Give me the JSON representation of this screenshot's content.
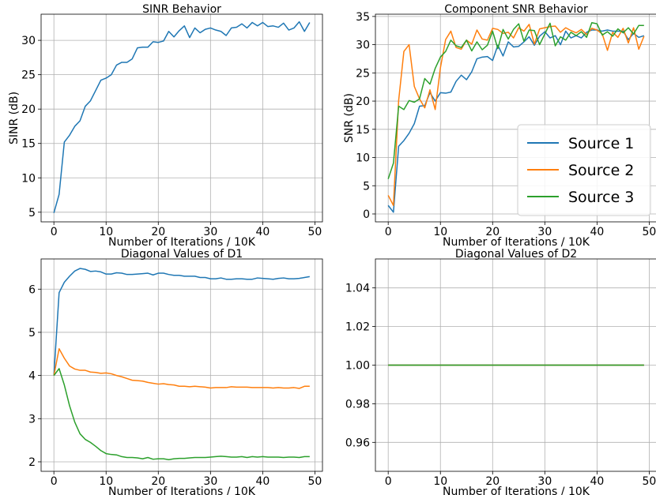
{
  "chart_data": [
    {
      "type": "line",
      "title": "SINR Behavior",
      "xlabel": "Number of Iterations / 10K",
      "ylabel": "SINR (dB)",
      "xlim": [
        -2.45,
        51.45
      ],
      "ylim": [
        3.6,
        33.8
      ],
      "xticks": [
        0,
        10,
        20,
        30,
        40,
        50
      ],
      "yticks": [
        5,
        10,
        15,
        20,
        25,
        30
      ],
      "grid": true,
      "x": [
        0,
        1,
        2,
        3,
        4,
        5,
        6,
        7,
        8,
        9,
        10,
        11,
        12,
        13,
        14,
        15,
        16,
        17,
        18,
        19,
        20,
        21,
        22,
        23,
        24,
        25,
        26,
        27,
        28,
        29,
        30,
        31,
        32,
        33,
        34,
        35,
        36,
        37,
        38,
        39,
        40,
        41,
        42,
        43,
        44,
        45,
        46,
        47,
        48,
        49
      ],
      "series": [
        {
          "color": "#1f77b4",
          "values": [
            4.9,
            7.6,
            15.2,
            16.2,
            17.5,
            18.3,
            20.4,
            21.2,
            22.7,
            24.2,
            24.5,
            25.0,
            26.4,
            26.8,
            26.8,
            27.3,
            28.9,
            29.0,
            29.0,
            29.8,
            29.7,
            29.9,
            31.3,
            30.5,
            31.4,
            32.1,
            30.4,
            31.8,
            31.1,
            31.6,
            31.8,
            31.5,
            31.3,
            30.7,
            31.8,
            31.9,
            32.4,
            31.8,
            32.6,
            32.1,
            32.6,
            32.0,
            32.1,
            31.9,
            32.5,
            31.5,
            31.8,
            32.7,
            31.3,
            32.6
          ]
        }
      ]
    },
    {
      "type": "line",
      "title": "Component SNR Behavior",
      "xlabel": "Number of Iterations / 10K",
      "ylabel": "SNR (dB)",
      "xlim": [
        -2.45,
        51.45
      ],
      "ylim": [
        -1.4,
        35.4
      ],
      "xticks": [
        0,
        10,
        20,
        30,
        40,
        50
      ],
      "yticks": [
        0,
        5,
        10,
        15,
        20,
        25,
        30,
        35
      ],
      "grid": true,
      "legend_position": "lower-right",
      "x": [
        0,
        1,
        2,
        3,
        4,
        5,
        6,
        7,
        8,
        9,
        10,
        11,
        12,
        13,
        14,
        15,
        16,
        17,
        18,
        19,
        20,
        21,
        22,
        23,
        24,
        25,
        26,
        27,
        28,
        29,
        30,
        31,
        32,
        33,
        34,
        35,
        36,
        37,
        38,
        39,
        40,
        41,
        42,
        43,
        44,
        45,
        46,
        47,
        48,
        49
      ],
      "series": [
        {
          "name": "Source 1",
          "color": "#1f77b4",
          "values": [
            1.5,
            0.3,
            12.0,
            13.0,
            14.3,
            16.0,
            19.1,
            19.2,
            21.5,
            20.0,
            21.5,
            21.4,
            21.6,
            23.5,
            24.6,
            23.8,
            25.2,
            27.5,
            27.8,
            27.9,
            27.2,
            29.9,
            28.0,
            30.5,
            29.6,
            29.7,
            30.5,
            31.4,
            29.9,
            31.5,
            32.3,
            31.2,
            31.6,
            30.0,
            32.4,
            31.2,
            31.6,
            31.2,
            32.2,
            32.6,
            32.6,
            32.4,
            32.6,
            32.4,
            32.4,
            32.4,
            30.9,
            32.0,
            31.3,
            31.6
          ]
        },
        {
          "name": "Source 2",
          "color": "#ff7f0e",
          "values": [
            3.3,
            1.5,
            20.1,
            28.8,
            30.0,
            22.6,
            20.4,
            18.8,
            22.0,
            18.5,
            25.9,
            30.9,
            32.4,
            29.5,
            29.2,
            30.8,
            30.1,
            32.6,
            31.0,
            30.8,
            32.9,
            32.7,
            32.0,
            32.2,
            31.2,
            33.0,
            32.4,
            33.6,
            30.1,
            32.8,
            33.0,
            33.2,
            33.3,
            32.2,
            33.0,
            32.5,
            32.1,
            32.7,
            31.8,
            32.9,
            32.6,
            31.9,
            29.0,
            32.2,
            31.3,
            32.9,
            30.3,
            33.0,
            29.2,
            31.5
          ]
        },
        {
          "name": "Source 3",
          "color": "#2ca02c",
          "values": [
            6.2,
            9.0,
            19.1,
            18.5,
            20.1,
            19.8,
            20.4,
            24.0,
            23.0,
            25.8,
            27.8,
            28.8,
            30.8,
            29.8,
            29.5,
            30.8,
            28.9,
            30.5,
            29.1,
            29.9,
            32.4,
            29.3,
            32.7,
            31.0,
            32.7,
            33.7,
            30.6,
            32.6,
            32.5,
            30.0,
            31.9,
            33.8,
            29.8,
            31.4,
            30.8,
            32.2,
            31.6,
            32.3,
            31.3,
            33.9,
            33.7,
            31.7,
            32.3,
            31.5,
            32.8,
            32.1,
            33.0,
            31.9,
            33.4,
            33.4
          ]
        }
      ]
    },
    {
      "type": "line",
      "title": "Diagonal Values of D1",
      "xlabel": "Number of Iterations / 10K",
      "ylabel": "",
      "xlim": [
        -2.45,
        51.45
      ],
      "ylim": [
        1.78,
        6.7
      ],
      "xticks": [
        0,
        10,
        20,
        30,
        40,
        50
      ],
      "yticks": [
        2,
        3,
        4,
        5,
        6
      ],
      "grid": true,
      "x": [
        0,
        1,
        2,
        3,
        4,
        5,
        6,
        7,
        8,
        9,
        10,
        11,
        12,
        13,
        14,
        15,
        16,
        17,
        18,
        19,
        20,
        21,
        22,
        23,
        24,
        25,
        26,
        27,
        28,
        29,
        30,
        31,
        32,
        33,
        34,
        35,
        36,
        37,
        38,
        39,
        40,
        41,
        42,
        43,
        44,
        45,
        46,
        47,
        48,
        49
      ],
      "series": [
        {
          "color": "#1f77b4",
          "values": [
            4.0,
            5.92,
            6.16,
            6.3,
            6.42,
            6.48,
            6.46,
            6.41,
            6.42,
            6.4,
            6.35,
            6.35,
            6.38,
            6.37,
            6.34,
            6.34,
            6.35,
            6.36,
            6.37,
            6.33,
            6.37,
            6.37,
            6.34,
            6.32,
            6.32,
            6.3,
            6.3,
            6.3,
            6.27,
            6.27,
            6.24,
            6.24,
            6.26,
            6.23,
            6.23,
            6.24,
            6.24,
            6.23,
            6.23,
            6.26,
            6.25,
            6.24,
            6.23,
            6.25,
            6.26,
            6.24,
            6.24,
            6.25,
            6.27,
            6.29
          ]
        },
        {
          "color": "#ff7f0e",
          "values": [
            4.0,
            4.62,
            4.4,
            4.22,
            4.15,
            4.12,
            4.12,
            4.08,
            4.07,
            4.05,
            4.06,
            4.04,
            4.0,
            3.97,
            3.93,
            3.89,
            3.88,
            3.87,
            3.84,
            3.82,
            3.8,
            3.81,
            3.79,
            3.78,
            3.75,
            3.75,
            3.74,
            3.75,
            3.74,
            3.73,
            3.71,
            3.72,
            3.72,
            3.72,
            3.74,
            3.73,
            3.73,
            3.73,
            3.72,
            3.72,
            3.72,
            3.72,
            3.71,
            3.72,
            3.71,
            3.71,
            3.72,
            3.7,
            3.75,
            3.75
          ]
        },
        {
          "color": "#2ca02c",
          "values": [
            4.0,
            4.16,
            3.78,
            3.3,
            2.92,
            2.65,
            2.52,
            2.45,
            2.36,
            2.26,
            2.19,
            2.17,
            2.16,
            2.12,
            2.1,
            2.1,
            2.09,
            2.07,
            2.1,
            2.06,
            2.07,
            2.07,
            2.05,
            2.07,
            2.08,
            2.08,
            2.09,
            2.1,
            2.1,
            2.1,
            2.11,
            2.12,
            2.13,
            2.12,
            2.11,
            2.11,
            2.12,
            2.1,
            2.12,
            2.11,
            2.12,
            2.11,
            2.11,
            2.11,
            2.1,
            2.11,
            2.11,
            2.1,
            2.12,
            2.12
          ]
        }
      ]
    },
    {
      "type": "line",
      "title": "Diagonal Values of D2",
      "xlabel": "Number of Iterations / 10K",
      "ylabel": "",
      "xlim": [
        -2.45,
        51.45
      ],
      "ylim": [
        0.945,
        1.055
      ],
      "xticks": [
        0,
        10,
        20,
        30,
        40,
        50
      ],
      "yticks": [
        0.96,
        0.98,
        1.0,
        1.02,
        1.04
      ],
      "ytick_labels": [
        "0.96",
        "0.98",
        "1.00",
        "1.02",
        "1.04"
      ],
      "grid": true,
      "x": [
        0,
        1,
        2,
        3,
        4,
        5,
        6,
        7,
        8,
        9,
        10,
        11,
        12,
        13,
        14,
        15,
        16,
        17,
        18,
        19,
        20,
        21,
        22,
        23,
        24,
        25,
        26,
        27,
        28,
        29,
        30,
        31,
        32,
        33,
        34,
        35,
        36,
        37,
        38,
        39,
        40,
        41,
        42,
        43,
        44,
        45,
        46,
        47,
        48,
        49
      ],
      "series": [
        {
          "color": "#1f77b4",
          "values": [
            1,
            1,
            1,
            1,
            1,
            1,
            1,
            1,
            1,
            1,
            1,
            1,
            1,
            1,
            1,
            1,
            1,
            1,
            1,
            1,
            1,
            1,
            1,
            1,
            1,
            1,
            1,
            1,
            1,
            1,
            1,
            1,
            1,
            1,
            1,
            1,
            1,
            1,
            1,
            1,
            1,
            1,
            1,
            1,
            1,
            1,
            1,
            1,
            1,
            1
          ]
        },
        {
          "color": "#ff7f0e",
          "values": [
            1,
            1,
            1,
            1,
            1,
            1,
            1,
            1,
            1,
            1,
            1,
            1,
            1,
            1,
            1,
            1,
            1,
            1,
            1,
            1,
            1,
            1,
            1,
            1,
            1,
            1,
            1,
            1,
            1,
            1,
            1,
            1,
            1,
            1,
            1,
            1,
            1,
            1,
            1,
            1,
            1,
            1,
            1,
            1,
            1,
            1,
            1,
            1,
            1,
            1
          ]
        },
        {
          "color": "#2ca02c",
          "values": [
            1,
            1,
            1,
            1,
            1,
            1,
            1,
            1,
            1,
            1,
            1,
            1,
            1,
            1,
            1,
            1,
            1,
            1,
            1,
            1,
            1,
            1,
            1,
            1,
            1,
            1,
            1,
            1,
            1,
            1,
            1,
            1,
            1,
            1,
            1,
            1,
            1,
            1,
            1,
            1,
            1,
            1,
            1,
            1,
            1,
            1,
            1,
            1,
            1,
            1
          ]
        }
      ]
    }
  ]
}
